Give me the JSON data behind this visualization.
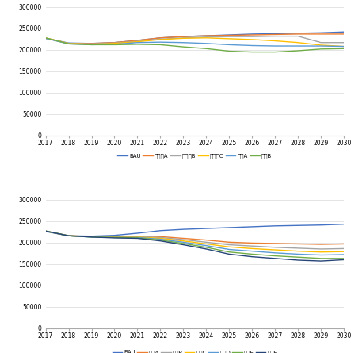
{
  "years": [
    2017,
    2018,
    2019,
    2020,
    2021,
    2022,
    2023,
    2024,
    2025,
    2026,
    2027,
    2028,
    2029,
    2030
  ],
  "chart1": {
    "BAU": [
      227000,
      216000,
      215000,
      217000,
      222000,
      228000,
      231000,
      233000,
      235000,
      237000,
      238000,
      239000,
      240000,
      242000
    ],
    "탄소세A": [
      227000,
      215000,
      215000,
      217000,
      222000,
      228000,
      231000,
      233000,
      234000,
      235000,
      236000,
      237000,
      237000,
      237000
    ],
    "탄소세B": [
      227000,
      215000,
      214000,
      216000,
      220000,
      225000,
      228000,
      230000,
      231000,
      231000,
      232000,
      232000,
      217000,
      217000
    ],
    "탄소세C": [
      228000,
      215000,
      213000,
      215000,
      219000,
      224000,
      227000,
      228000,
      226000,
      224000,
      221000,
      217000,
      211000,
      208000
    ],
    "대기A": [
      227000,
      214000,
      212000,
      213000,
      217000,
      218000,
      217000,
      215000,
      212000,
      210000,
      209000,
      209000,
      209000,
      208000
    ],
    "대기B": [
      228000,
      214000,
      212000,
      212000,
      213000,
      212000,
      207000,
      203000,
      197000,
      195000,
      195000,
      198000,
      202000,
      203000
    ]
  },
  "chart1_colors": {
    "BAU": "#4472C4",
    "탄소세A": "#ED7D31",
    "탄소세B": "#A5A5A5",
    "탄소세C": "#FFC000",
    "대기A": "#5B9BD5",
    "대기B": "#70AD47"
  },
  "chart2": {
    "BAU": [
      226000,
      216000,
      215000,
      217000,
      222000,
      228000,
      231000,
      233000,
      235000,
      237000,
      239000,
      240000,
      241000,
      243000
    ],
    "통합A": [
      227000,
      216000,
      214000,
      214000,
      215000,
      214000,
      210000,
      206000,
      201000,
      199000,
      198000,
      197000,
      196000,
      197000
    ],
    "통합B": [
      227000,
      216000,
      214000,
      213000,
      214000,
      212000,
      207000,
      201000,
      195000,
      192000,
      189000,
      187000,
      185000,
      186000
    ],
    "통합C": [
      227000,
      216000,
      214000,
      213000,
      213000,
      210000,
      204000,
      197000,
      190000,
      186000,
      183000,
      180000,
      178000,
      179000
    ],
    "통합D": [
      227000,
      216000,
      213000,
      212000,
      212000,
      208000,
      201000,
      193000,
      184000,
      180000,
      176000,
      173000,
      171000,
      172000
    ],
    "통합E": [
      227000,
      216000,
      213000,
      212000,
      211000,
      206000,
      198000,
      189000,
      178000,
      173000,
      169000,
      166000,
      163000,
      163000
    ],
    "통합F": [
      227000,
      216000,
      213000,
      211000,
      210000,
      204000,
      195000,
      185000,
      173000,
      167000,
      163000,
      159000,
      157000,
      160000
    ]
  },
  "chart2_colors": {
    "BAU": "#4472C4",
    "통합A": "#ED7D31",
    "통합B": "#A5A5A5",
    "통합C": "#FFC000",
    "통합D": "#5B9BD5",
    "통합E": "#70AD47",
    "통합F": "#264478"
  },
  "ylim": [
    0,
    300000
  ],
  "yticks": [
    0,
    50000,
    100000,
    150000,
    200000,
    250000,
    300000
  ],
  "background_color": "#FFFFFF",
  "grid_color": "#D9D9D9"
}
